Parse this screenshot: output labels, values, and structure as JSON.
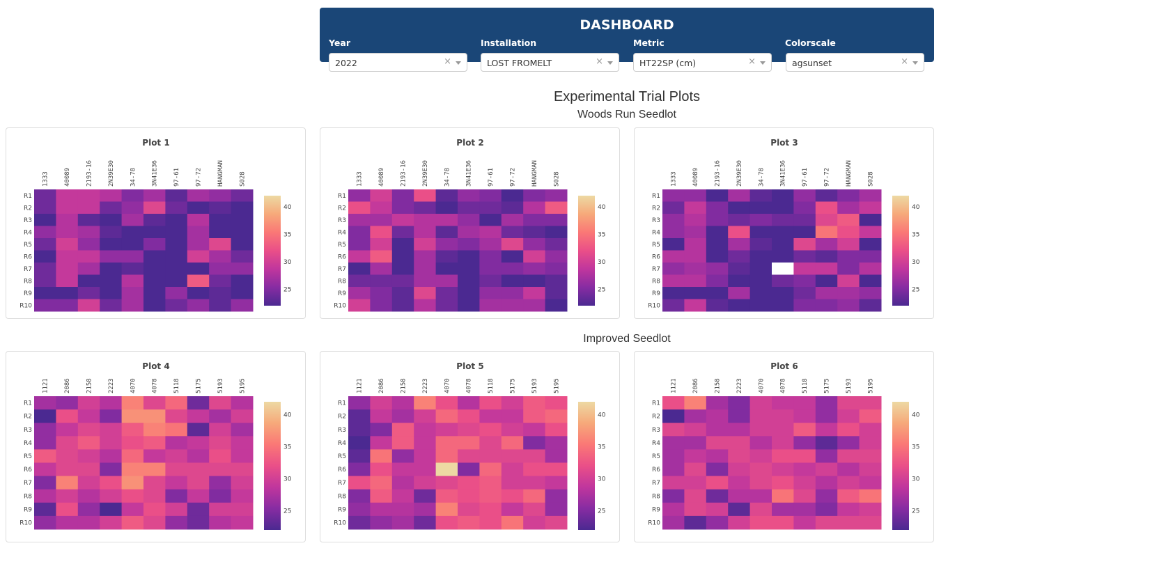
{
  "header": {
    "title": "DASHBOARD",
    "controls": [
      {
        "label": "Year",
        "value": "2022",
        "clearable": true
      },
      {
        "label": "Installation",
        "value": "LOST FROMELT",
        "clearable": true
      },
      {
        "label": "Metric",
        "value": "HT22SP (cm)",
        "clearable": true
      },
      {
        "label": "Colorscale",
        "value": "agsunset",
        "clearable": true
      }
    ],
    "clear_glyph": "×"
  },
  "main": {
    "title": "Experimental Trial Plots",
    "sections": [
      {
        "title": "Woods Run Seedlot"
      },
      {
        "title": "Improved Seedlot"
      }
    ]
  },
  "chart_data": [
    {
      "type": "heatmap",
      "title": "Plot 1",
      "section": "Woods Run Seedlot",
      "x": [
        "1333",
        "40089",
        "2193-16",
        "2N39E30",
        "34-78",
        "3N41E36",
        "97-61",
        "97-72",
        "HANGMAN",
        "S028"
      ],
      "y": [
        "R1",
        "R2",
        "R3",
        "R4",
        "R5",
        "R6",
        "R7",
        "R8",
        "R9",
        "R10"
      ],
      "colorscale": "agsunset",
      "zrange": [
        22,
        42
      ],
      "colorbar_ticks": [
        25,
        30,
        35,
        40
      ],
      "z": [
        [
          24,
          29,
          29,
          28,
          25,
          27,
          23,
          27,
          26,
          24
        ],
        [
          24,
          29,
          29,
          24,
          26,
          31,
          24,
          22,
          23,
          22
        ],
        [
          22,
          28,
          23,
          22,
          27,
          23,
          22,
          28,
          22,
          22
        ],
        [
          26,
          28,
          27,
          23,
          22,
          22,
          22,
          27,
          22,
          22
        ],
        [
          24,
          30,
          26,
          22,
          22,
          25,
          22,
          27,
          31,
          22
        ],
        [
          22,
          29,
          29,
          26,
          26,
          22,
          22,
          30,
          27,
          24
        ],
        [
          24,
          29,
          27,
          22,
          23,
          22,
          22,
          22,
          26,
          26
        ],
        [
          24,
          29,
          22,
          22,
          28,
          22,
          22,
          33,
          24,
          22
        ],
        [
          22,
          22,
          24,
          22,
          27,
          22,
          26,
          22,
          23,
          22
        ],
        [
          25,
          25,
          30,
          24,
          27,
          22,
          24,
          26,
          23,
          26
        ]
      ]
    },
    {
      "type": "heatmap",
      "title": "Plot 2",
      "section": "Woods Run Seedlot",
      "x": [
        "1333",
        "40089",
        "2193-16",
        "2N39E30",
        "34-78",
        "3N41E36",
        "97-61",
        "97-72",
        "HANGMAN",
        "S028"
      ],
      "y": [
        "R1",
        "R2",
        "R3",
        "R4",
        "R5",
        "R6",
        "R7",
        "R8",
        "R9",
        "R10"
      ],
      "colorscale": "agsunset",
      "zrange": [
        22,
        42
      ],
      "colorbar_ticks": [
        25,
        30,
        35,
        40
      ],
      "z": [
        [
          26,
          30,
          25,
          32,
          23,
          26,
          25,
          22,
          25,
          26
        ],
        [
          32,
          29,
          25,
          24,
          22,
          24,
          24,
          23,
          28,
          33
        ],
        [
          27,
          27,
          29,
          28,
          28,
          26,
          22,
          27,
          25,
          25
        ],
        [
          25,
          32,
          24,
          28,
          23,
          27,
          28,
          24,
          23,
          22
        ],
        [
          25,
          30,
          22,
          30,
          26,
          25,
          27,
          31,
          26,
          24
        ],
        [
          29,
          33,
          22,
          27,
          23,
          22,
          25,
          22,
          30,
          26
        ],
        [
          22,
          27,
          22,
          27,
          22,
          22,
          25,
          25,
          26,
          25
        ],
        [
          24,
          24,
          24,
          27,
          27,
          22,
          24,
          22,
          22,
          23
        ],
        [
          27,
          25,
          23,
          31,
          24,
          22,
          26,
          26,
          29,
          23
        ],
        [
          30,
          25,
          23,
          28,
          24,
          22,
          27,
          27,
          27,
          22
        ]
      ]
    },
    {
      "type": "heatmap",
      "title": "Plot 3",
      "section": "Woods Run Seedlot",
      "x": [
        "1333",
        "40089",
        "2193-16",
        "2N39E30",
        "34-78",
        "3N41E36",
        "97-61",
        "97-72",
        "HANGMAN",
        "S028"
      ],
      "y": [
        "R1",
        "R2",
        "R3",
        "R4",
        "R5",
        "R6",
        "R7",
        "R8",
        "R9",
        "R10"
      ],
      "colorscale": "agsunset",
      "zrange": [
        22,
        42
      ],
      "colorbar_ticks": [
        25,
        30,
        35,
        40
      ],
      "z": [
        [
          26,
          26,
          22,
          27,
          23,
          22,
          26,
          23,
          25,
          27
        ],
        [
          24,
          29,
          25,
          22,
          22,
          22,
          25,
          32,
          27,
          29
        ],
        [
          26,
          28,
          25,
          24,
          25,
          24,
          24,
          31,
          33,
          22
        ],
        [
          26,
          27,
          22,
          32,
          22,
          22,
          22,
          35,
          32,
          29
        ],
        [
          22,
          28,
          22,
          27,
          23,
          22,
          31,
          27,
          30,
          22
        ],
        [
          28,
          28,
          22,
          24,
          22,
          22,
          24,
          23,
          25,
          25
        ],
        [
          26,
          27,
          26,
          23,
          22,
          null,
          29,
          29,
          25,
          28
        ],
        [
          28,
          28,
          25,
          22,
          22,
          24,
          25,
          22,
          30,
          22
        ],
        [
          22,
          22,
          22,
          27,
          22,
          22,
          24,
          27,
          27,
          26
        ],
        [
          24,
          29,
          23,
          22,
          22,
          22,
          25,
          25,
          26,
          23
        ]
      ]
    },
    {
      "type": "heatmap",
      "title": "Plot 4",
      "section": "Improved Seedlot",
      "x": [
        "1121",
        "2086",
        "2158",
        "2223",
        "4070",
        "4078",
        "5118",
        "5175",
        "5193",
        "5195"
      ],
      "y": [
        "R1",
        "R2",
        "R3",
        "R4",
        "R5",
        "R6",
        "R7",
        "R8",
        "R9",
        "R10"
      ],
      "colorscale": "agsunset",
      "zrange": [
        22,
        42
      ],
      "colorbar_ticks": [
        25,
        30,
        35,
        40
      ],
      "z": [
        [
          27,
          26,
          30,
          28,
          36,
          31,
          34,
          24,
          31,
          28
        ],
        [
          22,
          32,
          29,
          25,
          37,
          37,
          31,
          29,
          27,
          30
        ],
        [
          26,
          29,
          31,
          30,
          33,
          36,
          35,
          23,
          30,
          27
        ],
        [
          26,
          31,
          33,
          30,
          32,
          33,
          28,
          29,
          31,
          29
        ],
        [
          33,
          31,
          30,
          28,
          34,
          29,
          30,
          28,
          32,
          29
        ],
        [
          29,
          31,
          31,
          25,
          36,
          36,
          31,
          31,
          31,
          31
        ],
        [
          25,
          36,
          30,
          32,
          37,
          31,
          29,
          31,
          26,
          30
        ],
        [
          28,
          30,
          28,
          30,
          32,
          31,
          25,
          29,
          25,
          29
        ],
        [
          23,
          32,
          26,
          22,
          29,
          32,
          30,
          24,
          30,
          30
        ],
        [
          26,
          28,
          28,
          30,
          33,
          31,
          26,
          24,
          28,
          29
        ]
      ]
    },
    {
      "type": "heatmap",
      "title": "Plot 5",
      "section": "Improved Seedlot",
      "x": [
        "1121",
        "2086",
        "2158",
        "2223",
        "4070",
        "4078",
        "5118",
        "5175",
        "5193",
        "5195"
      ],
      "y": [
        "R1",
        "R2",
        "R3",
        "R4",
        "R5",
        "R6",
        "R7",
        "R8",
        "R9",
        "R10"
      ],
      "colorscale": "agsunset",
      "zrange": [
        22,
        42
      ],
      "colorbar_ticks": [
        25,
        30,
        35,
        40
      ],
      "z": [
        [
          26,
          30,
          28,
          36,
          32,
          28,
          32,
          30,
          33,
          32
        ],
        [
          23,
          29,
          27,
          30,
          34,
          32,
          29,
          29,
          33,
          34
        ],
        [
          23,
          25,
          33,
          29,
          30,
          31,
          32,
          30,
          29,
          32
        ],
        [
          22,
          29,
          33,
          29,
          34,
          34,
          31,
          34,
          25,
          27
        ],
        [
          23,
          35,
          26,
          29,
          34,
          31,
          31,
          31,
          31,
          27
        ],
        [
          25,
          32,
          29,
          29,
          42,
          25,
          34,
          30,
          32,
          32
        ],
        [
          32,
          34,
          28,
          30,
          31,
          32,
          33,
          30,
          30,
          29
        ],
        [
          25,
          33,
          29,
          24,
          33,
          32,
          33,
          32,
          34,
          26
        ],
        [
          26,
          28,
          28,
          27,
          36,
          31,
          32,
          29,
          31,
          26
        ],
        [
          24,
          26,
          27,
          24,
          32,
          33,
          32,
          35,
          30,
          31
        ]
      ]
    },
    {
      "type": "heatmap",
      "title": "Plot 6",
      "section": "Improved Seedlot",
      "x": [
        "1121",
        "2086",
        "2158",
        "2223",
        "4070",
        "4078",
        "5118",
        "5175",
        "5193",
        "5195"
      ],
      "y": [
        "R1",
        "R2",
        "R3",
        "R4",
        "R5",
        "R6",
        "R7",
        "R8",
        "R9",
        "R10"
      ],
      "colorscale": "agsunset",
      "zrange": [
        22,
        42
      ],
      "colorbar_ticks": [
        25,
        30,
        35,
        40
      ],
      "z": [
        [
          32,
          36,
          27,
          25,
          30,
          29,
          29,
          26,
          31,
          31
        ],
        [
          22,
          27,
          28,
          25,
          30,
          30,
          29,
          26,
          30,
          33
        ],
        [
          31,
          30,
          28,
          28,
          30,
          30,
          33,
          29,
          32,
          30
        ],
        [
          27,
          27,
          31,
          31,
          28,
          30,
          26,
          23,
          26,
          30
        ],
        [
          27,
          29,
          28,
          31,
          30,
          32,
          32,
          26,
          31,
          31
        ],
        [
          27,
          31,
          25,
          30,
          31,
          30,
          29,
          30,
          28,
          30
        ],
        [
          30,
          30,
          32,
          29,
          31,
          32,
          30,
          28,
          30,
          29
        ],
        [
          25,
          31,
          24,
          28,
          28,
          35,
          31,
          26,
          33,
          35
        ],
        [
          28,
          31,
          30,
          23,
          31,
          27,
          27,
          25,
          29,
          30
        ],
        [
          27,
          23,
          26,
          30,
          32,
          32,
          29,
          31,
          31,
          31
        ]
      ]
    }
  ]
}
